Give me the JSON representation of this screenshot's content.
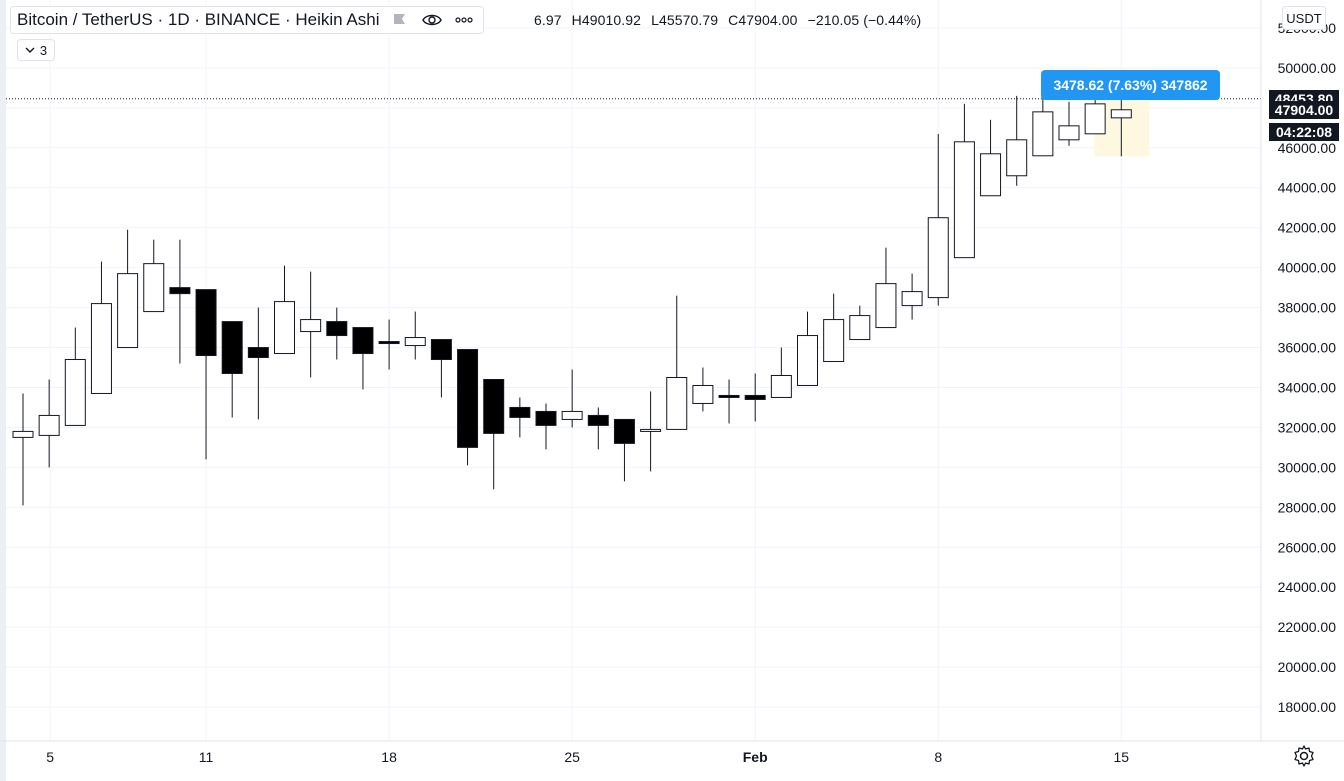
{
  "header": {
    "symbol": "Bitcoin / TetherUS · 1D · BINANCE · Heikin Ashi",
    "ohlc_open": "6.97",
    "ohlc_high": "H49010.92",
    "ohlc_low": "L45570.79",
    "ohlc_close": "C47904.00",
    "ohlc_change": "−210.05 (−0.44%)",
    "indicators_count": "3",
    "currency": "USDT",
    "icons": [
      "flag-icon",
      "eye-icon",
      "more-icon",
      "chevron-down-icon",
      "gear-icon"
    ]
  },
  "measure_tooltip": "3478.62 (7.63%) 347862",
  "price_labels": {
    "level_a": "48453.80",
    "last_price": "47904.00",
    "countdown": "04:22:08"
  },
  "colors": {
    "up": "#ffffff",
    "down": "#000000",
    "accent": "#2196f3",
    "grid": "#f0f3fa",
    "highlight": "#fff8e1"
  },
  "chart_data": {
    "type": "candlestick",
    "style": "Heikin Ashi",
    "title": "Bitcoin / TetherUS",
    "interval": "1D",
    "exchange": "BINANCE",
    "x_ticks": [
      "5",
      "11",
      "18",
      "25",
      "Feb",
      "8",
      "15"
    ],
    "y_ticks": [
      18000,
      20000,
      22000,
      24000,
      26000,
      28000,
      30000,
      32000,
      34000,
      36000,
      38000,
      40000,
      42000,
      44000,
      46000,
      48000,
      50000,
      52000
    ],
    "y_tick_labels": [
      "18000.00",
      "20000.00",
      "22000.00",
      "24000.00",
      "26000.00",
      "28000.00",
      "30000.00",
      "32000.00",
      "34000.00",
      "36000.00",
      "38000.00",
      "40000.00",
      "42000.00",
      "44000.00",
      "46000.00",
      "48000.00",
      "50000.00",
      "52000.00"
    ],
    "ylim": [
      16300,
      53400
    ],
    "grid": true,
    "candles": [
      {
        "o": 31500,
        "h": 33700,
        "l": 28100,
        "c": 31800
      },
      {
        "o": 31600,
        "h": 34400,
        "l": 30000,
        "c": 32600
      },
      {
        "o": 32100,
        "h": 37000,
        "l": 32100,
        "c": 35400
      },
      {
        "o": 33700,
        "h": 40300,
        "l": 33700,
        "c": 38200
      },
      {
        "o": 36000,
        "h": 41900,
        "l": 36000,
        "c": 39700
      },
      {
        "o": 37800,
        "h": 41400,
        "l": 37800,
        "c": 40200
      },
      {
        "o": 39000,
        "h": 41400,
        "l": 35200,
        "c": 38700
      },
      {
        "o": 38900,
        "h": 38900,
        "l": 30400,
        "c": 35600
      },
      {
        "o": 37300,
        "h": 37300,
        "l": 32500,
        "c": 34700
      },
      {
        "o": 36000,
        "h": 38000,
        "l": 32400,
        "c": 35500
      },
      {
        "o": 35700,
        "h": 40100,
        "l": 35700,
        "c": 38300
      },
      {
        "o": 36800,
        "h": 39800,
        "l": 34500,
        "c": 37400
      },
      {
        "o": 37300,
        "h": 38000,
        "l": 35400,
        "c": 36600
      },
      {
        "o": 37000,
        "h": 37000,
        "l": 33900,
        "c": 35700
      },
      {
        "o": 36300,
        "h": 37400,
        "l": 34900,
        "c": 36200
      },
      {
        "o": 36100,
        "h": 37800,
        "l": 35400,
        "c": 36500
      },
      {
        "o": 36400,
        "h": 36400,
        "l": 33500,
        "c": 35400
      },
      {
        "o": 35900,
        "h": 35900,
        "l": 30100,
        "c": 31000
      },
      {
        "o": 34400,
        "h": 34400,
        "l": 28900,
        "c": 31700
      },
      {
        "o": 33000,
        "h": 33500,
        "l": 31500,
        "c": 32500
      },
      {
        "o": 32800,
        "h": 33200,
        "l": 30900,
        "c": 32100
      },
      {
        "o": 32400,
        "h": 34900,
        "l": 32000,
        "c": 32800
      },
      {
        "o": 32600,
        "h": 33000,
        "l": 30900,
        "c": 32100
      },
      {
        "o": 32400,
        "h": 32400,
        "l": 29300,
        "c": 31200
      },
      {
        "o": 31800,
        "h": 33800,
        "l": 29800,
        "c": 31900
      },
      {
        "o": 31900,
        "h": 38600,
        "l": 31900,
        "c": 34500
      },
      {
        "o": 33200,
        "h": 35000,
        "l": 32800,
        "c": 34100
      },
      {
        "o": 33600,
        "h": 34400,
        "l": 32200,
        "c": 33500
      },
      {
        "o": 33600,
        "h": 34700,
        "l": 32300,
        "c": 33400
      },
      {
        "o": 33500,
        "h": 36000,
        "l": 33500,
        "c": 34600
      },
      {
        "o": 34100,
        "h": 37800,
        "l": 34100,
        "c": 36600
      },
      {
        "o": 35300,
        "h": 38700,
        "l": 35300,
        "c": 37400
      },
      {
        "o": 36400,
        "h": 38100,
        "l": 36400,
        "c": 37600
      },
      {
        "o": 37000,
        "h": 41000,
        "l": 37000,
        "c": 39200
      },
      {
        "o": 38100,
        "h": 39700,
        "l": 37400,
        "c": 38800
      },
      {
        "o": 38500,
        "h": 46700,
        "l": 38100,
        "c": 42500
      },
      {
        "o": 40500,
        "h": 48200,
        "l": 40500,
        "c": 46300
      },
      {
        "o": 43600,
        "h": 47400,
        "l": 43600,
        "c": 45700
      },
      {
        "o": 44600,
        "h": 48600,
        "l": 44100,
        "c": 46400
      },
      {
        "o": 45600,
        "h": 48900,
        "l": 45600,
        "c": 47800
      },
      {
        "o": 46400,
        "h": 48300,
        "l": 46100,
        "c": 47100
      },
      {
        "o": 46700,
        "h": 49700,
        "l": 46700,
        "c": 48200
      },
      {
        "o": 47500,
        "h": 49010.92,
        "l": 45570.79,
        "c": 47904.0
      }
    ],
    "last_price": 47904.0,
    "price_line": 48453.8
  }
}
